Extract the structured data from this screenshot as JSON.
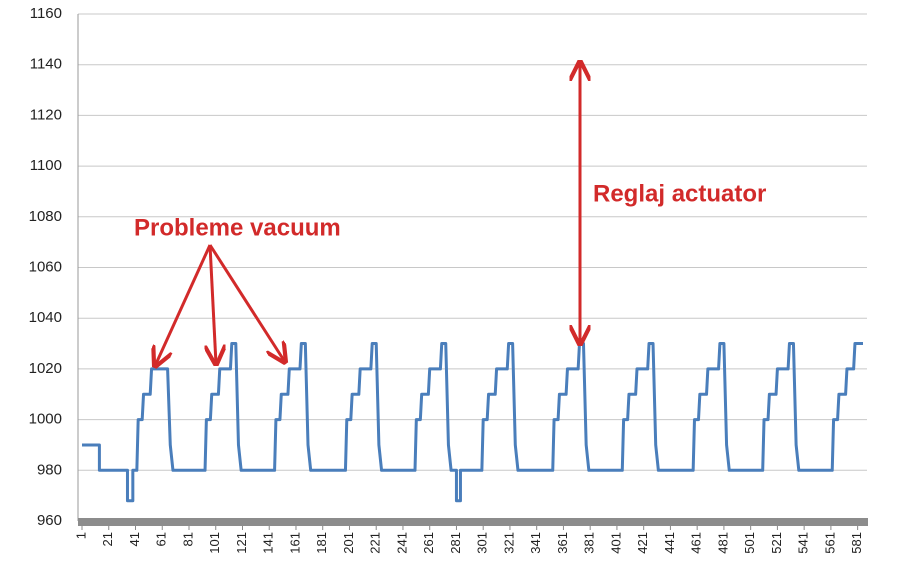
{
  "chart_data": {
    "type": "line",
    "x": [
      1,
      14,
      14,
      35,
      35,
      39,
      39,
      42,
      43,
      46,
      47,
      52,
      53,
      61,
      62,
      65,
      67,
      69,
      93,
      94,
      97,
      98,
      103,
      104,
      112,
      113,
      116,
      118,
      120,
      145,
      146,
      149,
      150,
      155,
      156,
      164,
      165,
      168,
      170,
      172,
      198,
      199,
      202,
      203,
      208,
      209,
      217,
      218,
      221,
      223,
      225,
      250,
      251,
      254,
      255,
      260,
      261,
      269,
      270,
      273,
      275,
      277,
      281,
      281,
      284,
      284,
      300,
      301,
      304,
      305,
      310,
      311,
      319,
      320,
      323,
      325,
      327,
      353,
      354,
      357,
      358,
      363,
      364,
      372,
      373,
      376,
      378,
      380,
      405,
      406,
      409,
      410,
      415,
      416,
      424,
      425,
      428,
      430,
      432,
      458,
      459,
      462,
      463,
      468,
      469,
      477,
      478,
      481,
      483,
      485,
      510,
      511,
      514,
      515,
      520,
      521,
      529,
      530,
      533,
      535,
      537,
      562,
      563,
      566,
      567,
      572,
      573,
      578,
      579,
      585
    ],
    "series": [
      {
        "color": "#4a7ebb",
        "values": [
          990,
          990,
          980,
          980,
          968,
          968,
          980,
          980,
          1000,
          1000,
          1010,
          1010,
          1020,
          1020,
          1020,
          1020,
          990,
          980,
          980,
          1000,
          1000,
          1010,
          1010,
          1020,
          1020,
          1030,
          1030,
          990,
          980,
          980,
          1000,
          1000,
          1010,
          1010,
          1020,
          1020,
          1030,
          1030,
          990,
          980,
          980,
          1000,
          1000,
          1010,
          1010,
          1020,
          1020,
          1030,
          1030,
          990,
          980,
          980,
          1000,
          1000,
          1010,
          1010,
          1020,
          1020,
          1030,
          1030,
          990,
          980,
          980,
          968,
          968,
          980,
          980,
          1000,
          1000,
          1010,
          1010,
          1020,
          1020,
          1030,
          1030,
          990,
          980,
          980,
          1000,
          1000,
          1010,
          1010,
          1020,
          1020,
          1030,
          1030,
          990,
          980,
          980,
          1000,
          1000,
          1010,
          1010,
          1020,
          1020,
          1030,
          1030,
          990,
          980,
          980,
          1000,
          1000,
          1010,
          1010,
          1020,
          1020,
          1030,
          1030,
          990,
          980,
          980,
          1000,
          1000,
          1010,
          1010,
          1020,
          1020,
          1030,
          1030,
          990,
          980,
          980,
          1000,
          1000,
          1010,
          1010,
          1020,
          1020,
          1030,
          1030
        ]
      }
    ],
    "xlim": [
      -2,
      588
    ],
    "xticks": [
      1,
      21,
      41,
      61,
      81,
      101,
      121,
      141,
      161,
      181,
      201,
      221,
      241,
      261,
      281,
      301,
      321,
      341,
      361,
      381,
      401,
      421,
      441,
      461,
      481,
      501,
      521,
      541,
      561,
      581
    ],
    "ylim": [
      960,
      1160
    ],
    "yticks": [
      960,
      980,
      1000,
      1020,
      1040,
      1060,
      1080,
      1100,
      1120,
      1140,
      1160
    ],
    "grid": true,
    "annotations": [
      "Probleme vacuum",
      "Reglaj actuator"
    ]
  }
}
